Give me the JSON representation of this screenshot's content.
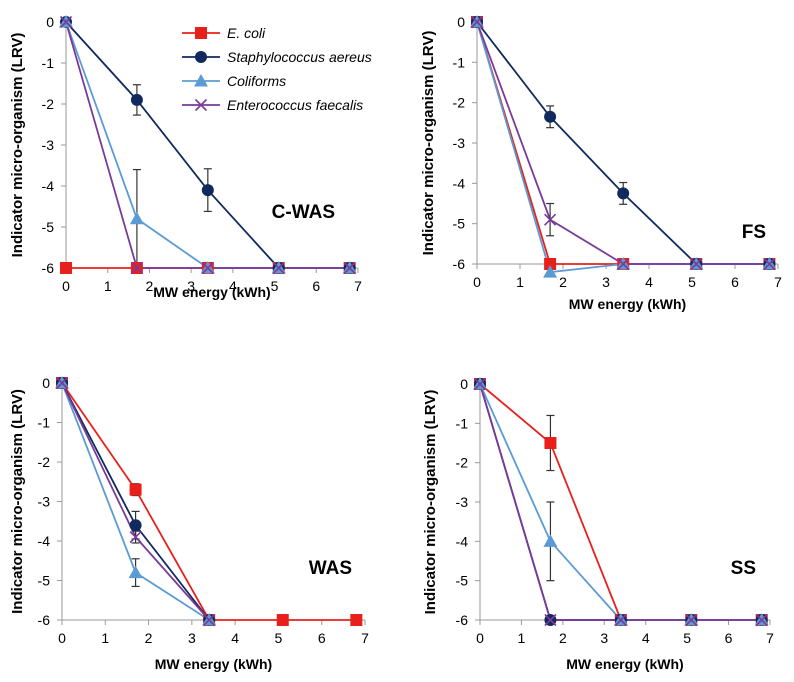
{
  "colors": {
    "ecoli": "#e8201c",
    "staph": "#102a5e",
    "coliforms": "#5b9bd5",
    "enterococcus": "#7a3a9a",
    "axis": "#999999",
    "errorbar": "#333333"
  },
  "series_meta": [
    {
      "key": "ecoli",
      "name": "E. coli",
      "marker": "square",
      "color_key": "ecoli"
    },
    {
      "key": "staph",
      "name": "Staphylococcus aereus",
      "marker": "circle",
      "color_key": "staph"
    },
    {
      "key": "coliforms",
      "name": "Coliforms",
      "marker": "triangle",
      "color_key": "coliforms"
    },
    {
      "key": "enterococcus",
      "name": "Enterococcus faecalis",
      "marker": "x",
      "color_key": "enterococcus"
    }
  ],
  "chart_data": [
    {
      "type": "line",
      "title": "C-WAS",
      "xlabel": "MW energy (kWh)",
      "ylabel": "Indicator micro-organism (LRV)",
      "xlim": [
        0,
        7
      ],
      "ylim": [
        -6,
        0
      ],
      "xticks": [
        "0",
        "1",
        "2",
        "3",
        "4",
        "5",
        "6",
        "7"
      ],
      "yticks": [
        "0",
        "-1",
        "-2",
        "-3",
        "-4",
        "-5",
        "-6"
      ],
      "show_legend": true,
      "series": [
        {
          "key": "ecoli",
          "x": [
            0,
            1.7,
            3.4,
            5.1,
            6.8
          ],
          "y": [
            -6,
            -6,
            -6,
            -6,
            -6
          ],
          "err": [
            0,
            0,
            0,
            0,
            0
          ]
        },
        {
          "key": "staph",
          "x": [
            0,
            1.7,
            3.4,
            5.1,
            6.8
          ],
          "y": [
            0,
            -1.9,
            -4.1,
            -6,
            -6
          ],
          "err": [
            0,
            0.37,
            0.52,
            0,
            0
          ]
        },
        {
          "key": "coliforms",
          "x": [
            0,
            1.7,
            3.4,
            5.1,
            6.8
          ],
          "y": [
            0,
            -4.8,
            -6,
            -6,
            -6
          ],
          "err": [
            0,
            1.2,
            0,
            0,
            0
          ]
        },
        {
          "key": "enterococcus",
          "x": [
            0,
            1.7,
            3.4,
            5.1,
            6.8
          ],
          "y": [
            0,
            -6,
            -6,
            -6,
            -6
          ],
          "err": [
            0,
            0,
            0,
            0,
            0
          ]
        }
      ]
    },
    {
      "type": "line",
      "title": "FS",
      "xlabel": "MW energy (kWh)",
      "ylabel": "Indicator micro-organism (LRV)",
      "xlim": [
        0,
        7
      ],
      "ylim": [
        -6,
        0
      ],
      "xticks": [
        "0",
        "1",
        "2",
        "3",
        "4",
        "5",
        "6",
        "7"
      ],
      "yticks": [
        "0",
        "-1",
        "-2",
        "-3",
        "-4",
        "-5",
        "-6"
      ],
      "show_legend": false,
      "series": [
        {
          "key": "ecoli",
          "x": [
            0,
            1.7,
            3.4,
            5.1,
            6.8
          ],
          "y": [
            0,
            -6,
            -6,
            -6,
            -6
          ],
          "err": [
            0,
            0,
            0,
            0,
            0
          ]
        },
        {
          "key": "staph",
          "x": [
            0,
            1.7,
            3.4,
            5.1,
            6.8
          ],
          "y": [
            0,
            -2.35,
            -4.25,
            -6,
            -6
          ],
          "err": [
            0,
            0.27,
            0.27,
            0,
            0
          ]
        },
        {
          "key": "coliforms",
          "x": [
            0,
            1.7,
            3.4,
            5.1,
            6.8
          ],
          "y": [
            0,
            -6.2,
            -6,
            -6,
            -6
          ],
          "err": [
            0,
            0,
            0,
            0,
            0
          ]
        },
        {
          "key": "enterococcus",
          "x": [
            0,
            1.7,
            3.4,
            5.1,
            6.8
          ],
          "y": [
            0,
            -4.9,
            -6,
            -6,
            -6
          ],
          "err": [
            0,
            0.4,
            0,
            0,
            0
          ]
        }
      ]
    },
    {
      "type": "line",
      "title": "WAS",
      "xlabel": "MW energy (kWh)",
      "ylabel": "Indicator micro-organism (LRV)",
      "xlim": [
        0,
        7
      ],
      "ylim": [
        -6,
        0
      ],
      "xticks": [
        "0",
        "1",
        "2",
        "3",
        "4",
        "5",
        "6",
        "7"
      ],
      "yticks": [
        "0",
        "-1",
        "-2",
        "-3",
        "-4",
        "-5",
        "-6"
      ],
      "show_legend": false,
      "series": [
        {
          "key": "ecoli",
          "x": [
            0,
            1.7,
            3.4,
            5.1,
            6.8
          ],
          "y": [
            0,
            -2.7,
            -6,
            -6,
            -6
          ],
          "err": [
            0,
            0.15,
            0,
            0,
            0
          ]
        },
        {
          "key": "staph",
          "x": [
            0,
            1.7,
            3.4
          ],
          "y": [
            0,
            -3.6,
            -6
          ],
          "err": [
            0,
            0.35,
            0
          ]
        },
        {
          "key": "coliforms",
          "x": [
            0,
            1.7,
            3.4
          ],
          "y": [
            0,
            -4.8,
            -6
          ],
          "err": [
            0,
            0.35,
            0
          ]
        },
        {
          "key": "enterococcus",
          "x": [
            0,
            1.7,
            3.4
          ],
          "y": [
            0,
            -3.9,
            -6
          ],
          "err": [
            0,
            0.15,
            0
          ]
        }
      ]
    },
    {
      "type": "line",
      "title": "SS",
      "xlabel": "MW energy (kWh)",
      "ylabel": "Indicator micro-organism (LRV)",
      "xlim": [
        0,
        7
      ],
      "ylim": [
        -6,
        0
      ],
      "xticks": [
        "0",
        "1",
        "2",
        "3",
        "4",
        "5",
        "6",
        "7"
      ],
      "yticks": [
        "0",
        "-1",
        "-2",
        "-3",
        "-4",
        "-5",
        "-6"
      ],
      "show_legend": false,
      "series": [
        {
          "key": "ecoli",
          "x": [
            0,
            1.7,
            3.4,
            5.1,
            6.8
          ],
          "y": [
            0,
            -1.5,
            -6,
            -6,
            -6
          ],
          "err": [
            0,
            0.7,
            0,
            0,
            0
          ]
        },
        {
          "key": "staph",
          "x": [
            0,
            1.7,
            3.4,
            5.1,
            6.8
          ],
          "y": [
            0,
            -6,
            -6,
            -6,
            -6
          ],
          "err": [
            0,
            0,
            0,
            0,
            0
          ]
        },
        {
          "key": "coliforms",
          "x": [
            0,
            1.7,
            3.4,
            5.1,
            6.8
          ],
          "y": [
            0,
            -4,
            -6,
            -6,
            -6
          ],
          "err": [
            0,
            1.0,
            0,
            0,
            0
          ]
        },
        {
          "key": "enterococcus",
          "x": [
            0,
            1.7,
            3.4,
            5.1,
            6.8
          ],
          "y": [
            0,
            -6,
            -6,
            -6,
            -6
          ],
          "err": [
            0,
            0,
            0,
            0,
            0
          ]
        }
      ]
    }
  ]
}
